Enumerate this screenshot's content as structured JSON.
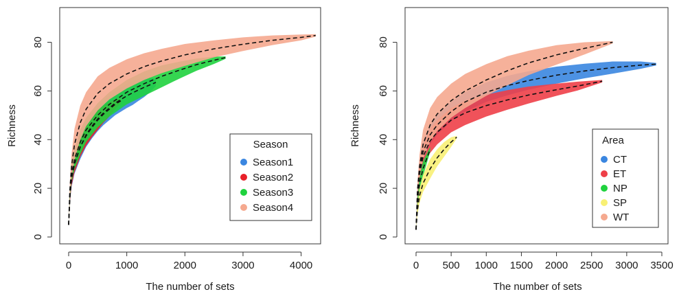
{
  "chart_data": [
    {
      "type": "line",
      "xlabel": "The number of sets",
      "ylabel": "Richness",
      "xlim": [
        0,
        4300
      ],
      "ylim": [
        0,
        92
      ],
      "xticks": [
        0,
        1000,
        2000,
        3000,
        4000
      ],
      "yticks": [
        0,
        20,
        40,
        60,
        80
      ],
      "grid": false,
      "legend": {
        "title": "Season",
        "position": "bottom-right",
        "entries": [
          "Season1",
          "Season2",
          "Season3",
          "Season4"
        ]
      },
      "series": [
        {
          "name": "Season1",
          "color": "#3a86e0",
          "x": [
            0,
            20,
            50,
            100,
            200,
            300,
            400,
            500,
            600,
            700,
            800,
            900,
            1000,
            1100,
            1200,
            1300,
            1400,
            1500
          ],
          "y": [
            5,
            16,
            24,
            30,
            37,
            42,
            45.5,
            48.5,
            51,
            53,
            55,
            56.5,
            58,
            59.2,
            60.4,
            61.5,
            62.5,
            63.5
          ],
          "band_width": [
            0,
            2,
            3.5,
            4,
            5,
            5,
            5,
            5,
            5,
            5,
            5,
            5,
            5,
            5,
            4.5,
            4,
            3,
            1.5
          ]
        },
        {
          "name": "Season2",
          "color": "#e8202a",
          "x": [
            0,
            20,
            50,
            100,
            200,
            300,
            400,
            500,
            600,
            700,
            800,
            900
          ],
          "y": [
            5,
            16,
            24,
            30,
            37,
            41.5,
            45,
            48,
            50.5,
            52.5,
            54.5,
            56
          ],
          "band_width": [
            0,
            2,
            3,
            3.5,
            4,
            4,
            4,
            4,
            3.5,
            3,
            2,
            1
          ]
        },
        {
          "name": "Season3",
          "color": "#1fd23e",
          "x": [
            0,
            20,
            50,
            100,
            200,
            300,
            500,
            700,
            1000,
            1300,
            1600,
            1900,
            2200,
            2500,
            2700
          ],
          "y": [
            5,
            17,
            26,
            32,
            39,
            44,
            50,
            54.5,
            59.5,
            63,
            66,
            68.5,
            70.8,
            72.6,
            73.7
          ],
          "band_width": [
            0,
            2,
            3.5,
            4,
            5,
            5,
            5,
            5,
            5,
            5,
            4.5,
            3.5,
            2.5,
            1.5,
            0.5
          ]
        },
        {
          "name": "Season4",
          "color": "#f5a98f",
          "x": [
            0,
            20,
            50,
            100,
            200,
            300,
            500,
            700,
            1000,
            1300,
            1600,
            2000,
            2500,
            3000,
            3500,
            4000,
            4250
          ],
          "y": [
            5,
            19,
            29,
            38,
            47,
            52.5,
            59,
            63,
            67,
            70,
            72.3,
            74.8,
            77.3,
            79.2,
            80.8,
            82,
            82.8
          ],
          "band_width": [
            0,
            3,
            5,
            6.5,
            7,
            7,
            7,
            6.5,
            6,
            5.5,
            5,
            4.5,
            3.5,
            2.8,
            2,
            1.2,
            0.5
          ]
        }
      ]
    },
    {
      "type": "line",
      "xlabel": "The number of sets",
      "ylabel": "Richness",
      "xlim": [
        0,
        3500
      ],
      "ylim": [
        0,
        92
      ],
      "xticks": [
        0,
        500,
        1000,
        1500,
        2000,
        2500,
        3000,
        3500
      ],
      "yticks": [
        0,
        20,
        40,
        60,
        80
      ],
      "grid": false,
      "legend": {
        "title": "Area",
        "position": "bottom-right",
        "entries": [
          "CT",
          "ET",
          "NP",
          "SP",
          "WT"
        ]
      },
      "series": [
        {
          "name": "CT",
          "color": "#3a86e0",
          "x": [
            0,
            20,
            50,
            100,
            200,
            300,
            500,
            700,
            1000,
            1300,
            1600,
            2000,
            2400,
            2800,
            3200,
            3420
          ],
          "y": [
            3,
            17,
            27,
            35,
            42,
            46,
            51.5,
            55.5,
            59.5,
            62.2,
            64.3,
            66.5,
            68.2,
            69.6,
            70.6,
            71
          ],
          "band_width": [
            0,
            2,
            3.5,
            4,
            4,
            4,
            4,
            4,
            4,
            4,
            3.8,
            3.5,
            3,
            2.5,
            1.5,
            0.5
          ]
        },
        {
          "name": "ET",
          "color": "#ee3f48",
          "x": [
            0,
            20,
            50,
            100,
            200,
            300,
            500,
            700,
            1000,
            1300,
            1600,
            2000,
            2300,
            2650
          ],
          "y": [
            3,
            16,
            26,
            33,
            39.5,
            43,
            48,
            51,
            54,
            56.3,
            58.3,
            60.5,
            62,
            64
          ],
          "band_width": [
            0,
            2,
            3.5,
            4.5,
            5,
            5,
            5,
            5,
            4.5,
            4,
            3.5,
            2.5,
            1.8,
            0.5
          ]
        },
        {
          "name": "NP",
          "color": "#1fd23e",
          "x": [
            0,
            20,
            50,
            100,
            150,
            200
          ],
          "y": [
            3,
            14,
            22,
            28,
            32,
            36
          ],
          "band_width": [
            0,
            2,
            3,
            3,
            2,
            1
          ]
        },
        {
          "name": "SP",
          "color": "#f8f074",
          "x": [
            0,
            20,
            50,
            100,
            200,
            300,
            400,
            500,
            580
          ],
          "y": [
            3,
            11,
            17,
            22,
            28,
            32.5,
            36,
            39,
            41
          ],
          "band_width": [
            0,
            2,
            3,
            3.5,
            4,
            3.5,
            3,
            2,
            0.5
          ]
        },
        {
          "name": "WT",
          "color": "#f5a98f",
          "x": [
            0,
            20,
            50,
            100,
            200,
            300,
            500,
            700,
            1000,
            1300,
            1600,
            2000,
            2400,
            2800
          ],
          "y": [
            3,
            19,
            29,
            38,
            46,
            50.5,
            56,
            60,
            64.5,
            68.3,
            71.5,
            74.8,
            77.5,
            80
          ],
          "band_width": [
            0,
            3,
            5,
            6,
            7,
            7,
            7,
            7,
            6.5,
            6,
            5,
            4,
            2.5,
            0.5
          ]
        }
      ]
    }
  ]
}
